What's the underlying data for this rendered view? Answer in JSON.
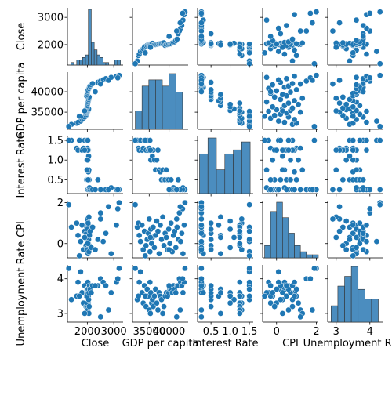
{
  "chart_data": {
    "type": "pairplot",
    "variables": [
      "Close",
      "GDP per capita",
      "Interest Rate",
      "CPI",
      "Unemployment Rate"
    ],
    "axis_titles": {
      "x": [
        "Close",
        "GDP per capita",
        "Interest Rate",
        "CPI",
        "Unemployment Rate"
      ],
      "y": [
        "Close",
        "GDP per capita",
        "Interest Rate",
        "CPI",
        "Unemployment Rate"
      ]
    },
    "ranges": [
      [
        1250,
        3350
      ],
      [
        30800,
        44800
      ],
      [
        0.15,
        1.6
      ],
      [
        -0.7,
        2.1
      ],
      [
        2.75,
        4.4
      ]
    ],
    "ticks": [
      {
        "values": [
          2000,
          3000
        ],
        "labels": [
          "2000",
          "3000"
        ]
      },
      {
        "values": [
          35000,
          40000
        ],
        "labels": [
          "35000",
          "40000"
        ]
      },
      {
        "values": [
          0.5,
          1.0,
          1.5
        ],
        "labels": [
          "0.5",
          "1.0",
          "1.5"
        ]
      },
      {
        "values": [
          0,
          2
        ],
        "labels": [
          "0",
          "2"
        ]
      },
      {
        "values": [
          3,
          4
        ],
        "labels": [
          "3",
          "4"
        ]
      }
    ],
    "hist": [
      {
        "bins": [
          1380,
          1490,
          1600,
          1710,
          1820,
          1930,
          2040,
          2150,
          2260,
          2370,
          2480,
          2590,
          2700,
          2810,
          2920,
          3030,
          3140,
          3250
        ],
        "counts": [
          1,
          0,
          2,
          2,
          3,
          4,
          22,
          9,
          6,
          4,
          3,
          1,
          1,
          0,
          0,
          2,
          2
        ]
      },
      {
        "bins": [
          31500,
          33200,
          34900,
          36600,
          38300,
          40000,
          41700,
          43400
        ],
        "counts": [
          3,
          7,
          8,
          8,
          7,
          9,
          6
        ]
      },
      {
        "bins": [
          0.2,
          0.42,
          0.64,
          0.86,
          1.08,
          1.3,
          1.52
        ],
        "counts": [
          10,
          14,
          6,
          10,
          11,
          13
        ]
      },
      {
        "bins": [
          -0.6,
          -0.3,
          0.0,
          0.3,
          0.6,
          0.9,
          1.2,
          1.5,
          1.8,
          2.1
        ],
        "counts": [
          4,
          15,
          18,
          13,
          8,
          4,
          2,
          1,
          1
        ]
      },
      {
        "bins": [
          2.85,
          3.05,
          3.25,
          3.45,
          3.65,
          3.85,
          4.05,
          4.25
        ],
        "counts": [
          5,
          11,
          14,
          17,
          10,
          7,
          7
        ]
      }
    ],
    "points": [
      [
        1400,
        32000,
        1.5,
        0.8,
        3.4
      ],
      [
        1600,
        32300,
        1.3,
        1.0,
        3.5
      ],
      [
        1650,
        32500,
        1.25,
        0.4,
        3.9
      ],
      [
        1750,
        32800,
        1.5,
        0.1,
        4.2
      ],
      [
        1800,
        33200,
        1.25,
        0.9,
        3.6
      ],
      [
        1850,
        33500,
        1.3,
        -0.3,
        3.3
      ],
      [
        1900,
        33800,
        1.5,
        0.6,
        3.8
      ],
      [
        1950,
        34200,
        1.25,
        -0.1,
        3.2
      ],
      [
        1980,
        34500,
        1.5,
        0.2,
        3.7
      ],
      [
        2000,
        34800,
        1.25,
        0.5,
        3.5
      ],
      [
        2010,
        35000,
        1.3,
        1.2,
        3.1
      ],
      [
        2020,
        35200,
        1.5,
        -0.4,
        3.9
      ],
      [
        2030,
        35400,
        1.0,
        0.7,
        3.6
      ],
      [
        2040,
        35600,
        1.25,
        0.0,
        3.3
      ],
      [
        2050,
        35800,
        1.1,
        0.3,
        3.4
      ],
      [
        1980,
        36000,
        1.25,
        0.8,
        3.2
      ],
      [
        1990,
        36300,
        1.0,
        -0.2,
        3.5
      ],
      [
        2000,
        36600,
        0.75,
        0.4,
        3.7
      ],
      [
        2010,
        36900,
        1.0,
        1.1,
        3.3
      ],
      [
        2020,
        37200,
        1.25,
        0.6,
        3.1
      ],
      [
        2030,
        37500,
        0.75,
        -0.5,
        3.6
      ],
      [
        2040,
        37800,
        0.7,
        0.9,
        3.5
      ],
      [
        2050,
        38100,
        0.5,
        0.2,
        3.4
      ],
      [
        2060,
        38400,
        0.75,
        1.3,
        3.0
      ],
      [
        2070,
        38700,
        0.5,
        -0.1,
        3.2
      ],
      [
        1970,
        39000,
        0.5,
        0.5,
        3.5
      ],
      [
        1990,
        39300,
        0.75,
        0.3,
        3.6
      ],
      [
        2000,
        39600,
        0.5,
        -0.3,
        3.5
      ],
      [
        2010,
        39900,
        0.5,
        0.7,
        3.6
      ],
      [
        2020,
        40200,
        0.25,
        0.0,
        3.7
      ],
      [
        2030,
        40500,
        0.5,
        1.0,
        3.7
      ],
      [
        2060,
        40800,
        0.25,
        -0.4,
        3.6
      ],
      [
        2080,
        41100,
        0.3,
        0.4,
        3.8
      ],
      [
        2100,
        41400,
        0.25,
        0.6,
        3.7
      ],
      [
        2150,
        41700,
        0.25,
        -0.2,
        3.6
      ],
      [
        2200,
        42000,
        0.25,
        0.8,
        3.8
      ],
      [
        2400,
        42300,
        0.5,
        0.2,
        3.8
      ],
      [
        2500,
        42600,
        0.25,
        1.5,
        4.0
      ],
      [
        2600,
        42900,
        0.25,
        0.1,
        3.9
      ],
      [
        2700,
        43200,
        0.25,
        0.5,
        3.8
      ],
      [
        2900,
        43500,
        0.3,
        -0.5,
        3.6
      ],
      [
        3100,
        43800,
        0.25,
        0.9,
        3.9
      ],
      [
        3200,
        44000,
        0.25,
        2.0,
        4.3
      ],
      [
        3150,
        43400,
        0.25,
        1.7,
        4.0
      ],
      [
        2800,
        42800,
        0.25,
        1.8,
        3.1
      ],
      [
        2500,
        41900,
        0.25,
        1.2,
        2.9
      ],
      [
        1700,
        34000,
        1.5,
        -0.6,
        3.5
      ],
      [
        1900,
        35300,
        1.25,
        0.3,
        3.0
      ],
      [
        1300,
        31500,
        1.5,
        1.9,
        4.3
      ],
      [
        2300,
        40000,
        0.25,
        -0.3,
        3.8
      ]
    ]
  }
}
